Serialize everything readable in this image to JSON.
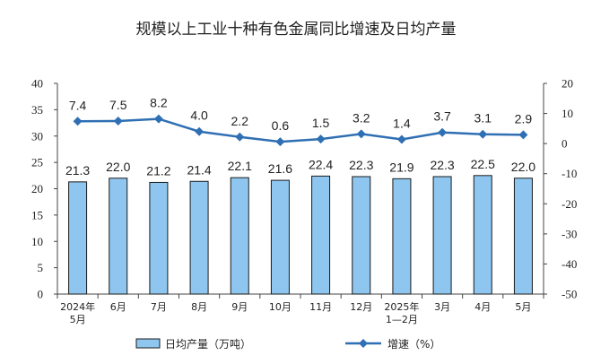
{
  "chart_data": {
    "type": "bar",
    "title": "规模以上工业十种有色金属同比增速及日均产量",
    "categories": [
      [
        "2024年",
        "5月"
      ],
      [
        "6月"
      ],
      [
        "7月"
      ],
      [
        "8月"
      ],
      [
        "9月"
      ],
      [
        "10月"
      ],
      [
        "11月"
      ],
      [
        "12月"
      ],
      [
        "2025年",
        "1—2月"
      ],
      [
        "3月"
      ],
      [
        "4月"
      ],
      [
        "5月"
      ]
    ],
    "series": [
      {
        "name": "日均产量（万吨）",
        "type": "bar",
        "axis": "left",
        "color": "#8ec6ef",
        "values": [
          21.3,
          22.0,
          21.2,
          21.4,
          22.1,
          21.6,
          22.4,
          22.3,
          21.9,
          22.3,
          22.5,
          22.0
        ]
      },
      {
        "name": "增速（%）",
        "type": "line",
        "axis": "right",
        "color": "#2f6fb3",
        "values": [
          7.4,
          7.5,
          8.2,
          4.0,
          2.2,
          0.6,
          1.5,
          3.2,
          1.4,
          3.7,
          3.1,
          2.9
        ]
      }
    ],
    "left_axis": {
      "ylim": [
        0,
        40
      ],
      "ticks": [
        0,
        5,
        10,
        15,
        20,
        25,
        30,
        35,
        40
      ]
    },
    "right_axis": {
      "ylim": [
        -50,
        20
      ],
      "ticks": [
        -50,
        -40,
        -30,
        -20,
        -10,
        0,
        10,
        20
      ]
    },
    "grid": false,
    "legend_position": "bottom"
  }
}
